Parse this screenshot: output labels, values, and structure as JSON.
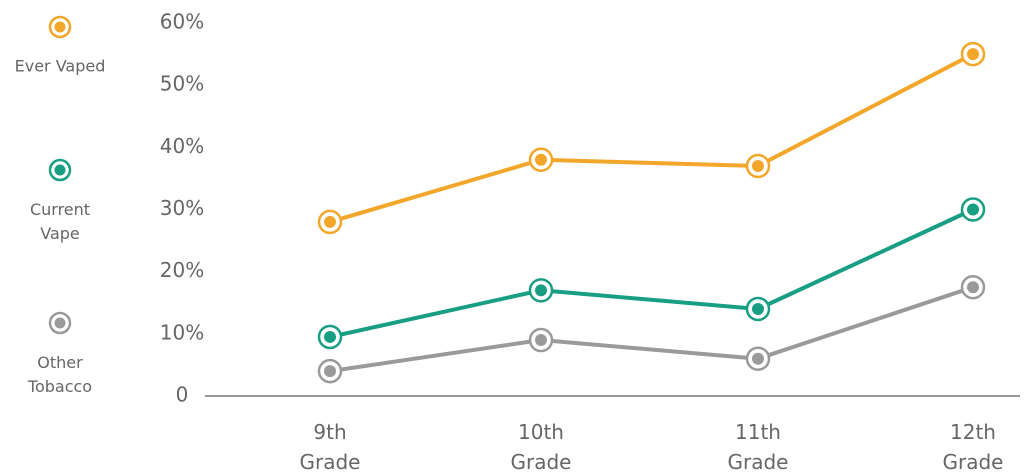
{
  "chart_data": {
    "type": "line",
    "categories": [
      "9th Grade",
      "10th Grade",
      "11th Grade",
      "12th Grade"
    ],
    "series": [
      {
        "name": "Ever Vaped",
        "color": "#f2a62a",
        "values": [
          28,
          38,
          37,
          55
        ]
      },
      {
        "name": "Current Vape",
        "color": "#179e83",
        "values": [
          9.5,
          17,
          14,
          30
        ]
      },
      {
        "name": "Other Tobacco",
        "color": "#9a9a9a",
        "values": [
          4,
          9,
          6,
          17.5
        ]
      }
    ],
    "ylim": [
      0,
      60
    ],
    "yticks": [
      0,
      {
        "value": 10,
        "label": "10%"
      },
      {
        "value": 20,
        "label": "20%"
      },
      {
        "value": 30,
        "label": "30%"
      },
      {
        "value": 40,
        "label": "40%"
      },
      {
        "value": 50,
        "label": "50%"
      },
      {
        "value": 60,
        "label": "60%"
      }
    ],
    "grid": false,
    "legend": "left"
  }
}
